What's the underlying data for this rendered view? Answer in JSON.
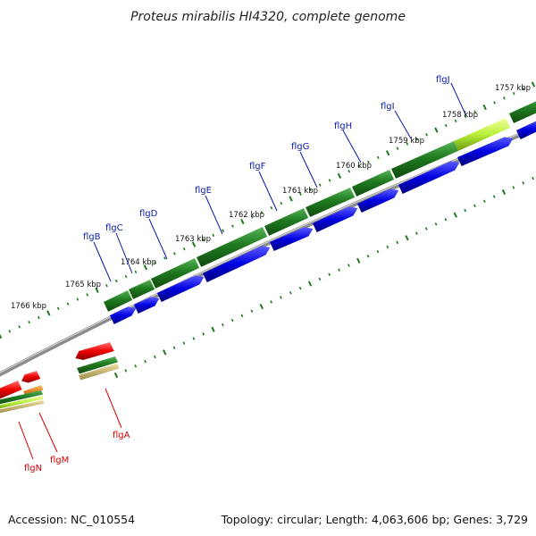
{
  "header": {
    "title": "Proteus mirabilis HI4320, complete genome"
  },
  "footer": {
    "accession": "Accession: NC_010554",
    "summary": "Topology: circular; Length: 4,063,606 bp; Genes: 3,729"
  },
  "map": {
    "ticks": [
      "1757 kbp",
      "1758 kbp",
      "1759 kbp",
      "1760 kbp",
      "1761 kbp",
      "1762 kbp",
      "1763 kbp",
      "1764 kbp",
      "1765 kbp",
      "1766 kbp"
    ],
    "forward_genes": [
      "flgJ",
      "flgI",
      "flgH",
      "flgG",
      "flgF",
      "flgE",
      "flgD",
      "flgC",
      "flgB"
    ],
    "reverse_genes": [
      "flgA",
      "flgM",
      "flgN"
    ],
    "colors": {
      "forward_label": "#0a1aa8",
      "reverse_label": "#d40000",
      "gene_green": "#1f7a1f",
      "cds_blue": "#0000e0",
      "cds_red": "#ee0000",
      "backbone": "#8c8c8c",
      "tick": "#1f7a1f"
    }
  }
}
